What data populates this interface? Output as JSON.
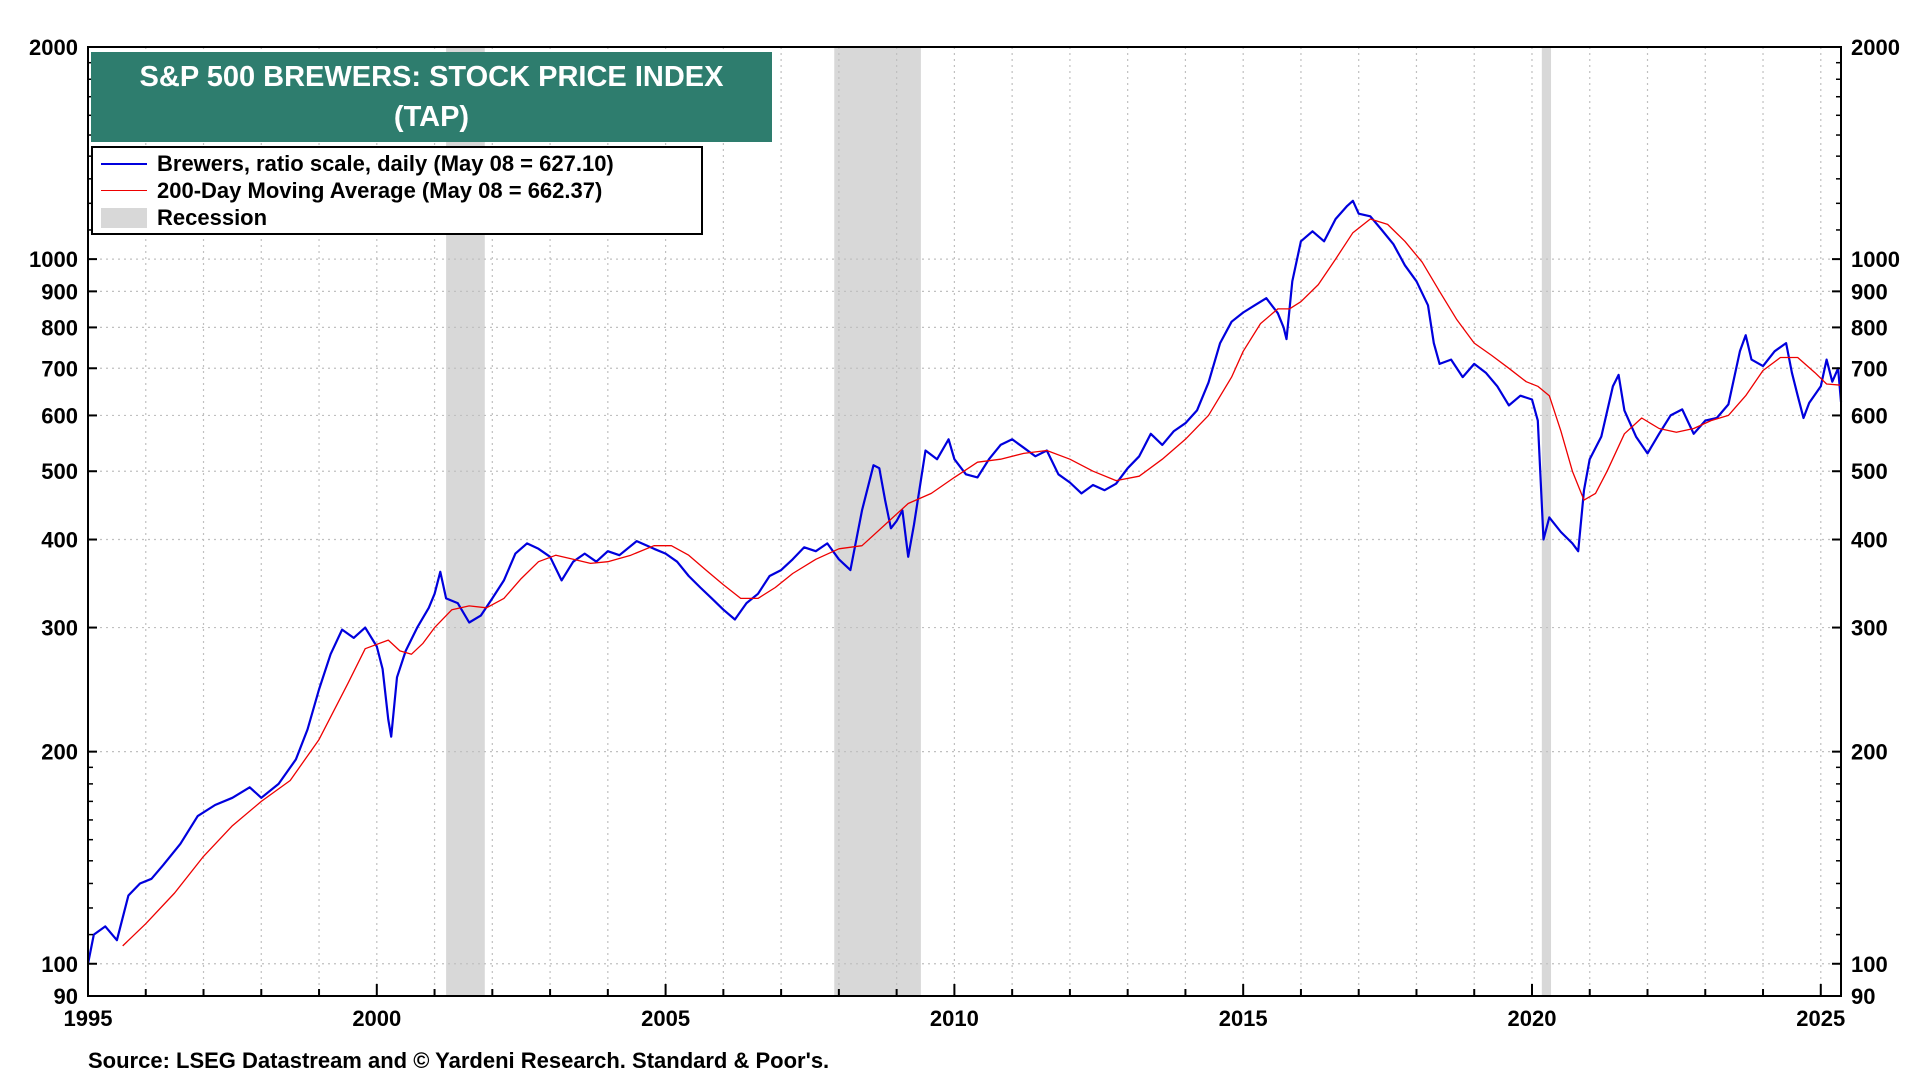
{
  "chart_data": {
    "type": "line",
    "title": "S&P 500 BREWERS: STOCK PRICE INDEX",
    "subtitle": "(TAP)",
    "y_scale": "log",
    "ylim": [
      90,
      2000
    ],
    "xlim": [
      1995.0,
      2025.35
    ],
    "y_ticks": [
      90,
      100,
      200,
      300,
      400,
      500,
      600,
      700,
      800,
      900,
      1000,
      2000
    ],
    "y_tick_labels_left": [
      "90",
      "100",
      "200",
      "300",
      "400",
      "500",
      "600",
      "700",
      "800",
      "900",
      "1000",
      "2000"
    ],
    "y_tick_labels_right": [
      "90",
      "100",
      "200",
      "300",
      "400",
      "500",
      "600",
      "700",
      "800",
      "900",
      "1000",
      "2000"
    ],
    "x_ticks": [
      1995,
      2000,
      2005,
      2010,
      2015,
      2020,
      2025
    ],
    "x_tick_labels": [
      "1995",
      "2000",
      "2005",
      "2010",
      "2015",
      "2020",
      "2025"
    ],
    "grid": true,
    "legend_position": "top-left",
    "series": [
      {
        "name": "Brewers, ratio scale, daily (May 08 = 627.10)",
        "color": "#0000dd",
        "points": [
          [
            1995.0,
            100
          ],
          [
            1995.1,
            110
          ],
          [
            1995.3,
            113
          ],
          [
            1995.5,
            108
          ],
          [
            1995.7,
            125
          ],
          [
            1995.9,
            130
          ],
          [
            1996.1,
            132
          ],
          [
            1996.3,
            138
          ],
          [
            1996.6,
            148
          ],
          [
            1996.9,
            162
          ],
          [
            1997.2,
            168
          ],
          [
            1997.5,
            172
          ],
          [
            1997.8,
            178
          ],
          [
            1998.0,
            172
          ],
          [
            1998.3,
            180
          ],
          [
            1998.6,
            195
          ],
          [
            1998.8,
            215
          ],
          [
            1999.0,
            245
          ],
          [
            1999.2,
            275
          ],
          [
            1999.4,
            298
          ],
          [
            1999.6,
            290
          ],
          [
            1999.8,
            300
          ],
          [
            2000.0,
            282
          ],
          [
            2000.1,
            262
          ],
          [
            2000.2,
            222
          ],
          [
            2000.25,
            210
          ],
          [
            2000.35,
            255
          ],
          [
            2000.5,
            278
          ],
          [
            2000.7,
            300
          ],
          [
            2000.9,
            320
          ],
          [
            2001.0,
            335
          ],
          [
            2001.1,
            360
          ],
          [
            2001.2,
            330
          ],
          [
            2001.4,
            325
          ],
          [
            2001.6,
            305
          ],
          [
            2001.8,
            312
          ],
          [
            2002.0,
            330
          ],
          [
            2002.2,
            350
          ],
          [
            2002.4,
            382
          ],
          [
            2002.6,
            395
          ],
          [
            2002.8,
            388
          ],
          [
            2003.0,
            378
          ],
          [
            2003.2,
            350
          ],
          [
            2003.4,
            372
          ],
          [
            2003.6,
            382
          ],
          [
            2003.8,
            372
          ],
          [
            2004.0,
            385
          ],
          [
            2004.2,
            380
          ],
          [
            2004.5,
            398
          ],
          [
            2004.8,
            388
          ],
          [
            2005.0,
            382
          ],
          [
            2005.2,
            372
          ],
          [
            2005.4,
            355
          ],
          [
            2005.6,
            342
          ],
          [
            2005.8,
            330
          ],
          [
            2006.0,
            318
          ],
          [
            2006.2,
            308
          ],
          [
            2006.4,
            325
          ],
          [
            2006.6,
            335
          ],
          [
            2006.8,
            355
          ],
          [
            2007.0,
            362
          ],
          [
            2007.2,
            375
          ],
          [
            2007.4,
            390
          ],
          [
            2007.6,
            385
          ],
          [
            2007.8,
            395
          ],
          [
            2008.0,
            375
          ],
          [
            2008.2,
            362
          ],
          [
            2008.4,
            440
          ],
          [
            2008.6,
            510
          ],
          [
            2008.7,
            505
          ],
          [
            2008.8,
            455
          ],
          [
            2008.9,
            415
          ],
          [
            2009.0,
            425
          ],
          [
            2009.1,
            440
          ],
          [
            2009.2,
            378
          ],
          [
            2009.3,
            420
          ],
          [
            2009.5,
            535
          ],
          [
            2009.7,
            520
          ],
          [
            2009.9,
            555
          ],
          [
            2010.0,
            520
          ],
          [
            2010.2,
            495
          ],
          [
            2010.4,
            490
          ],
          [
            2010.6,
            520
          ],
          [
            2010.8,
            545
          ],
          [
            2011.0,
            555
          ],
          [
            2011.2,
            540
          ],
          [
            2011.4,
            525
          ],
          [
            2011.6,
            535
          ],
          [
            2011.8,
            495
          ],
          [
            2012.0,
            482
          ],
          [
            2012.2,
            465
          ],
          [
            2012.4,
            478
          ],
          [
            2012.6,
            470
          ],
          [
            2012.8,
            480
          ],
          [
            2013.0,
            505
          ],
          [
            2013.2,
            525
          ],
          [
            2013.4,
            565
          ],
          [
            2013.6,
            545
          ],
          [
            2013.8,
            570
          ],
          [
            2014.0,
            585
          ],
          [
            2014.2,
            610
          ],
          [
            2014.4,
            668
          ],
          [
            2014.6,
            760
          ],
          [
            2014.8,
            815
          ],
          [
            2015.0,
            840
          ],
          [
            2015.2,
            860
          ],
          [
            2015.4,
            880
          ],
          [
            2015.6,
            838
          ],
          [
            2015.7,
            800
          ],
          [
            2015.75,
            770
          ],
          [
            2015.85,
            930
          ],
          [
            2016.0,
            1060
          ],
          [
            2016.2,
            1095
          ],
          [
            2016.4,
            1060
          ],
          [
            2016.6,
            1140
          ],
          [
            2016.8,
            1190
          ],
          [
            2016.9,
            1210
          ],
          [
            2017.0,
            1160
          ],
          [
            2017.2,
            1150
          ],
          [
            2017.4,
            1100
          ],
          [
            2017.6,
            1050
          ],
          [
            2017.8,
            980
          ],
          [
            2018.0,
            930
          ],
          [
            2018.2,
            860
          ],
          [
            2018.3,
            760
          ],
          [
            2018.4,
            710
          ],
          [
            2018.6,
            720
          ],
          [
            2018.8,
            680
          ],
          [
            2019.0,
            710
          ],
          [
            2019.2,
            690
          ],
          [
            2019.4,
            660
          ],
          [
            2019.6,
            620
          ],
          [
            2019.8,
            640
          ],
          [
            2020.0,
            632
          ],
          [
            2020.1,
            590
          ],
          [
            2020.2,
            400
          ],
          [
            2020.3,
            430
          ],
          [
            2020.5,
            410
          ],
          [
            2020.7,
            395
          ],
          [
            2020.8,
            385
          ],
          [
            2020.9,
            470
          ],
          [
            2021.0,
            520
          ],
          [
            2021.2,
            560
          ],
          [
            2021.4,
            660
          ],
          [
            2021.5,
            685
          ],
          [
            2021.6,
            610
          ],
          [
            2021.8,
            560
          ],
          [
            2022.0,
            530
          ],
          [
            2022.2,
            565
          ],
          [
            2022.4,
            600
          ],
          [
            2022.6,
            612
          ],
          [
            2022.8,
            565
          ],
          [
            2023.0,
            590
          ],
          [
            2023.2,
            595
          ],
          [
            2023.4,
            622
          ],
          [
            2023.6,
            740
          ],
          [
            2023.7,
            780
          ],
          [
            2023.8,
            720
          ],
          [
            2024.0,
            705
          ],
          [
            2024.2,
            740
          ],
          [
            2024.4,
            760
          ],
          [
            2024.5,
            690
          ],
          [
            2024.6,
            640
          ],
          [
            2024.7,
            595
          ],
          [
            2024.8,
            625
          ],
          [
            2025.0,
            660
          ],
          [
            2025.1,
            720
          ],
          [
            2025.2,
            670
          ],
          [
            2025.3,
            700
          ],
          [
            2025.35,
            627.1
          ]
        ]
      },
      {
        "name": "200-Day Moving Average (May 08 = 662.37)",
        "color": "#ee0000",
        "points": [
          [
            1995.6,
            106
          ],
          [
            1996.0,
            114
          ],
          [
            1996.5,
            126
          ],
          [
            1997.0,
            142
          ],
          [
            1997.5,
            157
          ],
          [
            1998.0,
            170
          ],
          [
            1998.5,
            182
          ],
          [
            1999.0,
            208
          ],
          [
            1999.5,
            250
          ],
          [
            1999.8,
            280
          ],
          [
            2000.2,
            288
          ],
          [
            2000.4,
            278
          ],
          [
            2000.6,
            275
          ],
          [
            2000.8,
            285
          ],
          [
            2001.0,
            300
          ],
          [
            2001.3,
            318
          ],
          [
            2001.6,
            322
          ],
          [
            2001.9,
            320
          ],
          [
            2002.2,
            330
          ],
          [
            2002.5,
            352
          ],
          [
            2002.8,
            372
          ],
          [
            2003.1,
            380
          ],
          [
            2003.4,
            375
          ],
          [
            2003.7,
            370
          ],
          [
            2004.0,
            372
          ],
          [
            2004.4,
            380
          ],
          [
            2004.8,
            392
          ],
          [
            2005.1,
            392
          ],
          [
            2005.4,
            380
          ],
          [
            2005.7,
            362
          ],
          [
            2006.0,
            345
          ],
          [
            2006.3,
            330
          ],
          [
            2006.6,
            330
          ],
          [
            2006.9,
            342
          ],
          [
            2007.2,
            358
          ],
          [
            2007.6,
            375
          ],
          [
            2008.0,
            388
          ],
          [
            2008.4,
            392
          ],
          [
            2008.8,
            420
          ],
          [
            2009.2,
            450
          ],
          [
            2009.6,
            465
          ],
          [
            2010.0,
            490
          ],
          [
            2010.4,
            515
          ],
          [
            2010.8,
            520
          ],
          [
            2011.2,
            530
          ],
          [
            2011.6,
            535
          ],
          [
            2012.0,
            520
          ],
          [
            2012.4,
            500
          ],
          [
            2012.8,
            485
          ],
          [
            2013.2,
            492
          ],
          [
            2013.6,
            520
          ],
          [
            2014.0,
            555
          ],
          [
            2014.4,
            600
          ],
          [
            2014.8,
            680
          ],
          [
            2015.0,
            740
          ],
          [
            2015.3,
            810
          ],
          [
            2015.6,
            850
          ],
          [
            2015.8,
            850
          ],
          [
            2016.0,
            870
          ],
          [
            2016.3,
            920
          ],
          [
            2016.6,
            1000
          ],
          [
            2016.9,
            1090
          ],
          [
            2017.2,
            1140
          ],
          [
            2017.5,
            1120
          ],
          [
            2017.8,
            1060
          ],
          [
            2018.1,
            990
          ],
          [
            2018.4,
            900
          ],
          [
            2018.7,
            820
          ],
          [
            2019.0,
            760
          ],
          [
            2019.3,
            730
          ],
          [
            2019.6,
            700
          ],
          [
            2019.9,
            670
          ],
          [
            2020.1,
            660
          ],
          [
            2020.3,
            640
          ],
          [
            2020.5,
            570
          ],
          [
            2020.7,
            500
          ],
          [
            2020.9,
            455
          ],
          [
            2021.1,
            465
          ],
          [
            2021.3,
            500
          ],
          [
            2021.6,
            565
          ],
          [
            2021.9,
            595
          ],
          [
            2022.2,
            575
          ],
          [
            2022.5,
            568
          ],
          [
            2022.8,
            575
          ],
          [
            2023.1,
            590
          ],
          [
            2023.4,
            600
          ],
          [
            2023.7,
            640
          ],
          [
            2024.0,
            695
          ],
          [
            2024.3,
            725
          ],
          [
            2024.6,
            725
          ],
          [
            2024.9,
            690
          ],
          [
            2025.1,
            665
          ],
          [
            2025.35,
            662.37
          ]
        ]
      }
    ],
    "recessions": [
      [
        2001.2,
        2001.87
      ],
      [
        2007.92,
        2009.42
      ],
      [
        2020.17,
        2020.33
      ]
    ],
    "legend": [
      {
        "label": "Brewers, ratio scale, daily (May 08 = 627.10)",
        "kind": "line",
        "color": "#0000dd"
      },
      {
        "label": "200-Day Moving Average (May 08 = 662.37)",
        "kind": "line",
        "color": "#ee0000"
      },
      {
        "label": "Recession",
        "kind": "box",
        "color": "#d8d8d8"
      }
    ],
    "source": "Source: LSEG Datastream and © Yardeni Research. Standard & Poor's."
  }
}
